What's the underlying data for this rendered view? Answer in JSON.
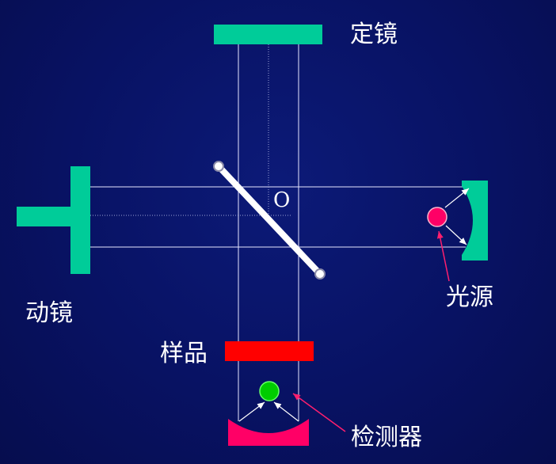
{
  "labels": {
    "fixed_mirror": "定镜",
    "moving_mirror": "动镜",
    "light_source": "光源",
    "sample": "样品",
    "detector": "检测器",
    "center": "O"
  },
  "colors": {
    "background": "#081263",
    "mirror": "#00cc99",
    "beam": "#e6e6ff",
    "beam_splitter": "#ffffff",
    "sample": "#ff0000",
    "detector_cup": "#ff0066",
    "detector_dot": "#00cc00",
    "source_dot": "#ff0066",
    "pointer_arrow": "#ff1f6e"
  }
}
